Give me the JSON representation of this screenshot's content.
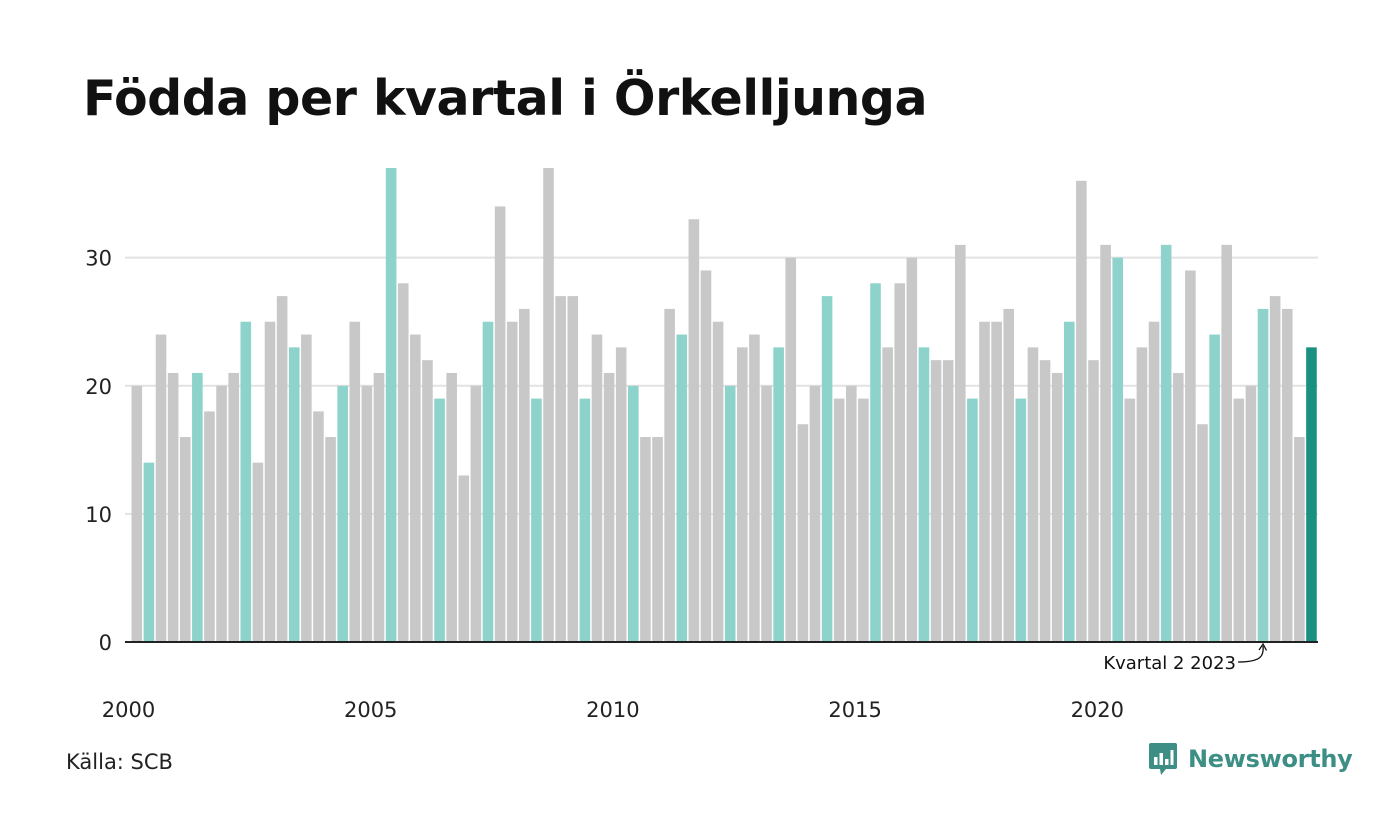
{
  "title": "Födda per kvartal i Örkelljunga",
  "source": "Källa: SCB",
  "brand": {
    "name": "Newsworthy",
    "icon": "newsworthy-logo-icon",
    "color": "#3d8f86"
  },
  "colors": {
    "default": "#c8c8c8",
    "q2": "#8dd3cb",
    "latest": "#1a9080",
    "grid": "#e2e2e2",
    "axis": "#222222"
  },
  "chart_data": {
    "type": "bar",
    "title": "Födda per kvartal i Örkelljunga",
    "xlabel": "",
    "ylabel": "",
    "ylim": [
      0,
      37
    ],
    "yticks": [
      0,
      10,
      20,
      30
    ],
    "xticks": [
      "2000",
      "2005",
      "2010",
      "2015",
      "2020"
    ],
    "grid": true,
    "start": "2000 Q1",
    "end": "2024 Q2",
    "highlight": "Q2",
    "annotation": {
      "text": "Kvartal 2 2023",
      "target": "2023 Q2"
    },
    "values": [
      20,
      14,
      24,
      21,
      16,
      21,
      18,
      20,
      21,
      25,
      14,
      25,
      27,
      23,
      24,
      18,
      16,
      20,
      25,
      20,
      21,
      37,
      28,
      24,
      22,
      19,
      21,
      13,
      20,
      25,
      34,
      25,
      26,
      19,
      37,
      27,
      27,
      19,
      24,
      21,
      23,
      20,
      16,
      16,
      26,
      24,
      33,
      29,
      25,
      20,
      23,
      24,
      20,
      23,
      30,
      17,
      20,
      27,
      19,
      20,
      19,
      28,
      23,
      28,
      30,
      23,
      22,
      22,
      31,
      19,
      25,
      25,
      26,
      19,
      23,
      22,
      21,
      25,
      36,
      22,
      31,
      30,
      19,
      23,
      25,
      31,
      21,
      29,
      17,
      24,
      31,
      19,
      20,
      26,
      27,
      26,
      16,
      23
    ]
  }
}
